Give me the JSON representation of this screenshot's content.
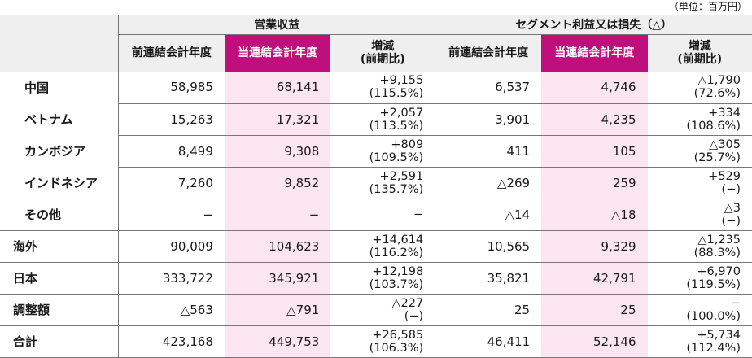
{
  "unit_note": "（単位：百万円）",
  "headers": {
    "group_revenue": "営業収益",
    "group_segment": "セグメント利益又は損失（△）",
    "prev_year": "前連結会計年度",
    "cur_year": "当連結会計年度",
    "change_line1": "増減",
    "change_line2": "(前期比)"
  },
  "rows": [
    {
      "label": "中国",
      "rev_prev": "58,985",
      "rev_cur": "68,141",
      "rev_chg1": "+9,155",
      "rev_chg2": "(115.5%)",
      "seg_prev": "6,537",
      "seg_cur": "4,746",
      "seg_chg1": "△1,790",
      "seg_chg2": "(72.6%)"
    },
    {
      "label": "ベトナム",
      "rev_prev": "15,263",
      "rev_cur": "17,321",
      "rev_chg1": "+2,057",
      "rev_chg2": "(113.5%)",
      "seg_prev": "3,901",
      "seg_cur": "4,235",
      "seg_chg1": "+334",
      "seg_chg2": "(108.6%)"
    },
    {
      "label": "カンボジア",
      "rev_prev": "8,499",
      "rev_cur": "9,308",
      "rev_chg1": "+809",
      "rev_chg2": "(109.5%)",
      "seg_prev": "411",
      "seg_cur": "105",
      "seg_chg1": "△305",
      "seg_chg2": "(25.7%)"
    },
    {
      "label": "インドネシア",
      "rev_prev": "7,260",
      "rev_cur": "9,852",
      "rev_chg1": "+2,591",
      "rev_chg2": "(135.7%)",
      "seg_prev": "△269",
      "seg_cur": "259",
      "seg_chg1": "+529",
      "seg_chg2": "(−)"
    },
    {
      "label": "その他",
      "rev_prev": "−",
      "rev_cur": "−",
      "rev_chg1": "−",
      "rev_chg2": "",
      "seg_prev": "△14",
      "seg_cur": "△18",
      "seg_chg1": "△3",
      "seg_chg2": "(−)"
    },
    {
      "label": "海外",
      "rev_prev": "90,009",
      "rev_cur": "104,623",
      "rev_chg1": "+14,614",
      "rev_chg2": "(116.2%)",
      "seg_prev": "10,565",
      "seg_cur": "9,329",
      "seg_chg1": "△1,235",
      "seg_chg2": "(88.3%)"
    },
    {
      "label": "日本",
      "rev_prev": "333,722",
      "rev_cur": "345,921",
      "rev_chg1": "+12,198",
      "rev_chg2": "(103.7%)",
      "seg_prev": "35,821",
      "seg_cur": "42,791",
      "seg_chg1": "+6,970",
      "seg_chg2": "(119.5%)"
    },
    {
      "label": "調整額",
      "rev_prev": "△563",
      "rev_cur": "△791",
      "rev_chg1": "△227",
      "rev_chg2": "(−)",
      "seg_prev": "25",
      "seg_cur": "25",
      "seg_chg1": "−",
      "seg_chg2": "(100.0%)"
    },
    {
      "label": "合計",
      "rev_prev": "423,168",
      "rev_cur": "449,753",
      "rev_chg1": "+26,585",
      "rev_chg2": "(106.3%)",
      "seg_prev": "46,411",
      "seg_cur": "52,146",
      "seg_chg1": "+5,734",
      "seg_chg2": "(112.4%)"
    }
  ],
  "colors": {
    "current_header": "#be0f7d",
    "current_cell": "#fbe6f0",
    "header_bg": "#efefef"
  }
}
